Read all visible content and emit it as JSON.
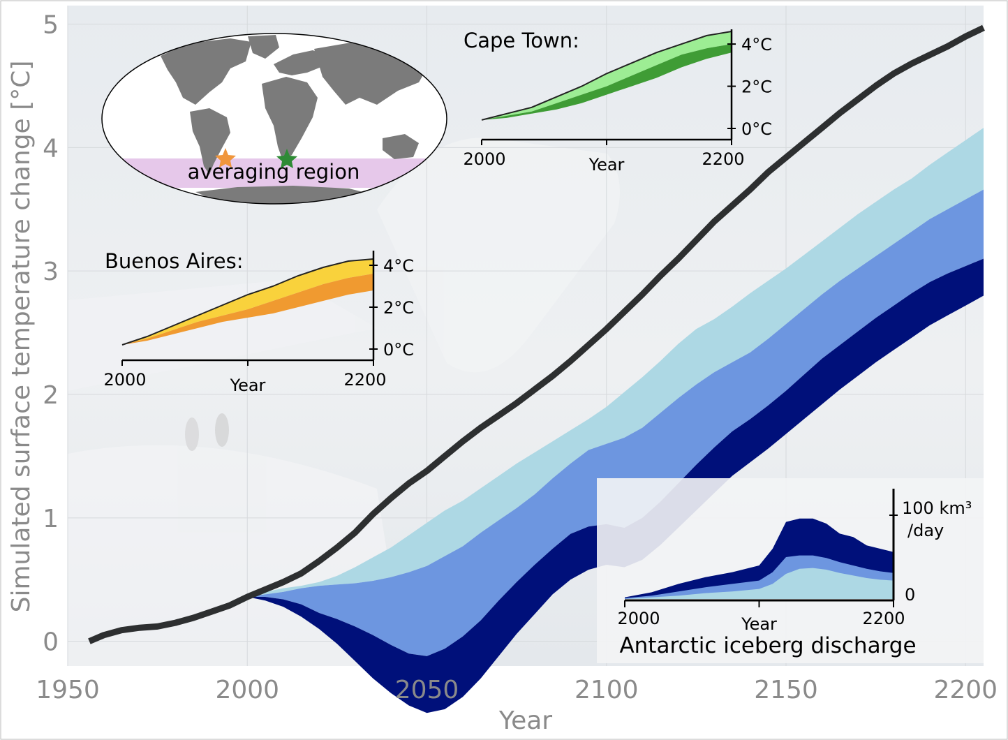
{
  "chart_data": [
    {
      "id": "main",
      "type": "area",
      "xlabel": "Year",
      "ylabel": "Simulated surface temperature change [°C]",
      "xlim": [
        1950,
        2205
      ],
      "ylim": [
        -0.2,
        5.15
      ],
      "xticks": [
        1950,
        2000,
        2050,
        2100,
        2150,
        2200
      ],
      "yticks": [
        0,
        1,
        2,
        3,
        4,
        5
      ],
      "grid": true,
      "series": [
        {
          "name": "",
          "style": "line",
          "color": "#2d2f30",
          "x": [
            1956,
            1960,
            1965,
            1970,
            1975,
            1980,
            1985,
            1990,
            1995,
            2000,
            2005,
            2010,
            2015,
            2020,
            2025,
            2030,
            2035,
            2040,
            2045,
            2050,
            2055,
            2060,
            2065,
            2070,
            2075,
            2080,
            2085,
            2090,
            2095,
            2100,
            2105,
            2110,
            2115,
            2120,
            2125,
            2130,
            2135,
            2140,
            2145,
            2150,
            2155,
            2160,
            2165,
            2170,
            2175,
            2180,
            2185,
            2190,
            2195,
            2200,
            2205
          ],
          "y": [
            0.0,
            0.05,
            0.09,
            0.11,
            0.12,
            0.15,
            0.19,
            0.24,
            0.29,
            0.36,
            0.42,
            0.48,
            0.55,
            0.65,
            0.76,
            0.88,
            1.03,
            1.16,
            1.28,
            1.38,
            1.5,
            1.62,
            1.73,
            1.83,
            1.93,
            2.04,
            2.15,
            2.27,
            2.4,
            2.53,
            2.67,
            2.81,
            2.96,
            3.1,
            3.25,
            3.4,
            3.53,
            3.66,
            3.8,
            3.92,
            4.04,
            4.16,
            4.28,
            4.39,
            4.5,
            4.6,
            4.68,
            4.75,
            4.82,
            4.9,
            4.97
          ]
        },
        {
          "name": "",
          "style": "band",
          "color": "#add8e4",
          "x": [
            2000,
            2005,
            2010,
            2015,
            2020,
            2025,
            2030,
            2035,
            2040,
            2045,
            2050,
            2055,
            2060,
            2065,
            2070,
            2075,
            2080,
            2085,
            2090,
            2095,
            2100,
            2105,
            2110,
            2115,
            2120,
            2125,
            2130,
            2135,
            2140,
            2145,
            2150,
            2155,
            2160,
            2165,
            2170,
            2175,
            2180,
            2185,
            2190,
            2195,
            2200,
            2205
          ],
          "y": [
            0.36,
            0.4,
            0.43,
            0.45,
            0.48,
            0.53,
            0.6,
            0.68,
            0.76,
            0.86,
            0.96,
            1.06,
            1.14,
            1.24,
            1.34,
            1.44,
            1.53,
            1.62,
            1.71,
            1.8,
            1.9,
            2.02,
            2.14,
            2.27,
            2.41,
            2.53,
            2.61,
            2.71,
            2.82,
            2.92,
            3.02,
            3.13,
            3.24,
            3.35,
            3.46,
            3.56,
            3.66,
            3.75,
            3.86,
            3.96,
            4.06,
            4.16
          ]
        },
        {
          "name": "",
          "style": "band",
          "color": "#6d96e0",
          "x": [
            2000,
            2005,
            2010,
            2015,
            2020,
            2025,
            2030,
            2035,
            2040,
            2045,
            2050,
            2055,
            2060,
            2065,
            2070,
            2075,
            2080,
            2085,
            2090,
            2095,
            2100,
            2105,
            2110,
            2115,
            2120,
            2125,
            2130,
            2135,
            2140,
            2145,
            2150,
            2155,
            2160,
            2165,
            2170,
            2175,
            2180,
            2185,
            2190,
            2195,
            2200,
            2205
          ],
          "y": [
            0.36,
            0.38,
            0.4,
            0.43,
            0.45,
            0.46,
            0.47,
            0.49,
            0.52,
            0.56,
            0.61,
            0.69,
            0.77,
            0.88,
            0.98,
            1.08,
            1.19,
            1.32,
            1.44,
            1.55,
            1.6,
            1.65,
            1.73,
            1.85,
            1.97,
            2.08,
            2.18,
            2.26,
            2.34,
            2.45,
            2.57,
            2.69,
            2.81,
            2.92,
            3.02,
            3.12,
            3.22,
            3.32,
            3.42,
            3.5,
            3.58,
            3.66
          ]
        },
        {
          "name": "",
          "style": "band",
          "color": "#00107a",
          "x": [
            2000,
            2005,
            2010,
            2015,
            2020,
            2025,
            2030,
            2035,
            2040,
            2045,
            2050,
            2055,
            2060,
            2065,
            2070,
            2075,
            2080,
            2085,
            2090,
            2095,
            2100,
            2105,
            2110,
            2115,
            2120,
            2125,
            2130,
            2135,
            2140,
            2145,
            2150,
            2155,
            2160,
            2165,
            2170,
            2175,
            2180,
            2185,
            2190,
            2195,
            2200,
            2205
          ],
          "y": [
            0.36,
            0.36,
            0.34,
            0.3,
            0.23,
            0.18,
            0.12,
            0.05,
            -0.03,
            -0.1,
            -0.12,
            -0.06,
            0.04,
            0.17,
            0.33,
            0.48,
            0.62,
            0.75,
            0.87,
            0.93,
            0.95,
            0.92,
            1.0,
            1.13,
            1.28,
            1.43,
            1.57,
            1.7,
            1.8,
            1.91,
            2.03,
            2.16,
            2.29,
            2.4,
            2.51,
            2.62,
            2.72,
            2.82,
            2.91,
            2.98,
            3.04,
            3.1
          ]
        }
      ]
    },
    {
      "id": "cape-town",
      "type": "area",
      "title": "Cape Town:",
      "xlabel": "Year",
      "xticks": [
        2000,
        2200
      ],
      "ytick_labels": [
        "0°C",
        "2°C",
        "4°C"
      ],
      "yticks": [
        0,
        2,
        4
      ],
      "ylim": [
        0,
        4.5
      ],
      "series": [
        {
          "name": "",
          "style": "band",
          "color": "#9ded94",
          "x": [
            2000,
            2020,
            2040,
            2060,
            2080,
            2100,
            2120,
            2140,
            2160,
            2180,
            2200
          ],
          "y": [
            0.4,
            0.7,
            1.0,
            1.5,
            2.0,
            2.6,
            3.1,
            3.6,
            4.0,
            4.4,
            4.6
          ],
          "y0": [
            0.4,
            0.6,
            0.8,
            1.2,
            1.6,
            2.0,
            2.5,
            3.0,
            3.5,
            3.8,
            4.0
          ]
        },
        {
          "name": "",
          "style": "band",
          "color": "#3f9c35",
          "x": [
            2000,
            2020,
            2040,
            2060,
            2080,
            2100,
            2120,
            2140,
            2160,
            2180,
            2200
          ],
          "y": [
            0.4,
            0.6,
            0.8,
            1.2,
            1.6,
            2.0,
            2.5,
            3.0,
            3.5,
            3.8,
            4.0
          ],
          "y0": [
            0.4,
            0.5,
            0.7,
            0.9,
            1.2,
            1.6,
            2.0,
            2.4,
            2.9,
            3.3,
            3.6
          ]
        }
      ]
    },
    {
      "id": "buenos-aires",
      "type": "area",
      "title": "Buenos Aires:",
      "xlabel": "Year",
      "xticks": [
        2000,
        2200
      ],
      "ytick_labels": [
        "0°C",
        "2°C",
        "4°C"
      ],
      "yticks": [
        0,
        2,
        4
      ],
      "ylim": [
        0,
        4.5
      ],
      "series": [
        {
          "name": "",
          "style": "band",
          "color": "#f9d23c",
          "x": [
            2000,
            2020,
            2040,
            2060,
            2080,
            2100,
            2120,
            2140,
            2160,
            2180,
            2200
          ],
          "y": [
            0.2,
            0.6,
            1.1,
            1.6,
            2.1,
            2.6,
            3.0,
            3.5,
            3.9,
            4.2,
            4.3
          ],
          "y0": [
            0.2,
            0.5,
            0.9,
            1.3,
            1.6,
            1.9,
            2.3,
            2.7,
            3.1,
            3.4,
            3.6
          ]
        },
        {
          "name": "",
          "style": "band",
          "color": "#f09a30",
          "x": [
            2000,
            2020,
            2040,
            2060,
            2080,
            2100,
            2120,
            2140,
            2160,
            2180,
            2200
          ],
          "y": [
            0.2,
            0.5,
            0.9,
            1.3,
            1.6,
            1.9,
            2.3,
            2.7,
            3.1,
            3.4,
            3.6
          ],
          "y0": [
            0.2,
            0.4,
            0.7,
            1.0,
            1.3,
            1.5,
            1.7,
            2.0,
            2.3,
            2.6,
            2.8
          ]
        }
      ]
    },
    {
      "id": "iceberg-discharge",
      "type": "area",
      "title": "Antarctic iceberg discharge",
      "xlabel": "Year",
      "xticks": [
        2000,
        2200
      ],
      "ytick_labels": [
        "0",
        "100 km³",
        "/day"
      ],
      "yticks": [
        0,
        100
      ],
      "ylim": [
        0,
        100
      ],
      "series": [
        {
          "name": "",
          "style": "band",
          "color": "#00107a",
          "x": [
            2000,
            2020,
            2040,
            2060,
            2080,
            2100,
            2110,
            2120,
            2130,
            2140,
            2150,
            2160,
            2170,
            2180,
            2190,
            2200
          ],
          "y": [
            2,
            8,
            18,
            26,
            32,
            40,
            60,
            92,
            96,
            96,
            90,
            78,
            74,
            64,
            60,
            56
          ],
          "y0": [
            0,
            0,
            0,
            0,
            0,
            0,
            0,
            0,
            0,
            0,
            0,
            0,
            0,
            0,
            0,
            0
          ]
        },
        {
          "name": "",
          "style": "band",
          "color": "#6d96e0",
          "x": [
            2000,
            2020,
            2040,
            2060,
            2080,
            2100,
            2110,
            2120,
            2130,
            2140,
            2150,
            2160,
            2170,
            2180,
            2190,
            2200
          ],
          "y": [
            1,
            4,
            9,
            14,
            18,
            22,
            32,
            50,
            52,
            52,
            49,
            44,
            40,
            36,
            33,
            31
          ],
          "y0": [
            0,
            0,
            0,
            0,
            0,
            0,
            0,
            0,
            0,
            0,
            0,
            0,
            0,
            0,
            0,
            0
          ]
        },
        {
          "name": "",
          "style": "band",
          "color": "#add8e4",
          "x": [
            2000,
            2020,
            2040,
            2060,
            2080,
            2100,
            2110,
            2120,
            2130,
            2140,
            2150,
            2160,
            2170,
            2180,
            2190,
            2200
          ],
          "y": [
            0,
            2,
            4,
            7,
            9,
            12,
            18,
            30,
            36,
            37,
            35,
            31,
            28,
            25,
            23,
            22
          ],
          "y0": [
            0,
            0,
            0,
            0,
            0,
            0,
            0,
            0,
            0,
            0,
            0,
            0,
            0,
            0,
            0,
            0
          ]
        }
      ]
    }
  ],
  "map_inset": {
    "region_label": "averaging region",
    "region_color": "#e6c8ea",
    "markers": [
      {
        "name": "Buenos Aires",
        "color": "#f0963c"
      },
      {
        "name": "Cape Town",
        "color": "#2e8b35"
      }
    ]
  }
}
